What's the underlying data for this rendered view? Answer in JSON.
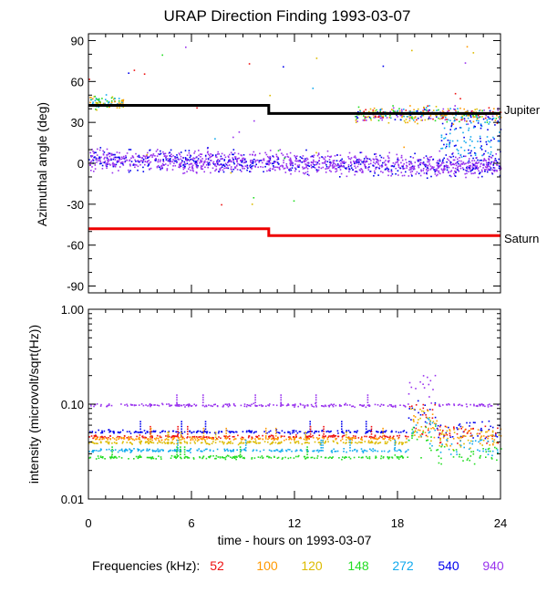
{
  "chart_data": {
    "title": "URAP Direction Finding  1993-03-07",
    "type": "scatter",
    "panels": [
      {
        "type": "scatter",
        "ylabel": "Azimuthal angle (deg)",
        "ylim": [
          -95,
          95
        ],
        "yticks": [
          "90",
          "60",
          "30",
          "0",
          "-30",
          "-60",
          "-90"
        ],
        "reference_lines": [
          {
            "name": "Jupiter",
            "color": "#000000",
            "segments": [
              [
                0,
                10.5,
                42.5
              ],
              [
                10.5,
                24,
                36.5
              ]
            ]
          },
          {
            "name": "Saturn",
            "color": "#ee0000",
            "segments": [
              [
                0,
                10.5,
                -48
              ],
              [
                10.5,
                24,
                -53
              ]
            ]
          }
        ]
      },
      {
        "type": "scatter",
        "ylabel": "intensity (microvolt/sqrt(Hz))",
        "yscale": "log",
        "ylim": [
          0.01,
          1.0
        ],
        "yticks": [
          "1.00",
          "0.10",
          "0.01"
        ],
        "series": [
          {
            "freq": "940",
            "baseline": 0.099
          },
          {
            "freq": "540",
            "baseline": 0.052
          },
          {
            "freq": "52",
            "baseline": 0.046
          },
          {
            "freq": "100",
            "baseline": 0.044
          },
          {
            "freq": "120",
            "baseline": 0.04
          },
          {
            "freq": "272",
            "baseline": 0.033
          },
          {
            "freq": "148",
            "baseline": 0.028
          }
        ]
      }
    ],
    "xlabel": "time - hours on 1993-03-07",
    "xlim": [
      0,
      24
    ],
    "xticks": [
      "0",
      "6",
      "12",
      "18",
      "24"
    ],
    "legend": {
      "label": "Frequencies (kHz):",
      "items": [
        {
          "freq": "52",
          "color": "#ee1111"
        },
        {
          "freq": "100",
          "color": "#ff9900"
        },
        {
          "freq": "120",
          "color": "#ddbb00"
        },
        {
          "freq": "148",
          "color": "#22dd22"
        },
        {
          "freq": "272",
          "color": "#11aaee"
        },
        {
          "freq": "540",
          "color": "#0000ee"
        },
        {
          "freq": "940",
          "color": "#9933ee"
        }
      ]
    }
  }
}
